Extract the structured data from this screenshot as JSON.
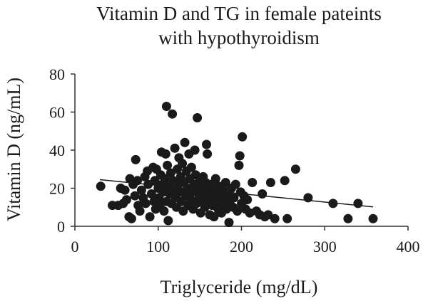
{
  "chart_data": {
    "type": "scatter",
    "title_lines": [
      "Vitamin D and TG in female pateints",
      "with hypothyroidism"
    ],
    "xlabel": "Triglyceride (mg/dL)",
    "ylabel": "Vitamin D (ng/mL)",
    "xlim": [
      0,
      400
    ],
    "ylim": [
      0,
      80
    ],
    "xticks": [
      0,
      100,
      200,
      300,
      400
    ],
    "yticks": [
      0,
      20,
      40,
      60,
      80
    ],
    "grid": false,
    "legend": "none",
    "point_color": "#1a1a1a",
    "trendline": {
      "x": [
        30,
        358
      ],
      "y": [
        24.5,
        10.2
      ]
    },
    "points": [
      {
        "x": 31,
        "y": 21
      },
      {
        "x": 45,
        "y": 11
      },
      {
        "x": 52,
        "y": 11
      },
      {
        "x": 55,
        "y": 20
      },
      {
        "x": 58,
        "y": 12
      },
      {
        "x": 60,
        "y": 19
      },
      {
        "x": 62,
        "y": 14
      },
      {
        "x": 65,
        "y": 5
      },
      {
        "x": 66,
        "y": 25
      },
      {
        "x": 68,
        "y": 4
      },
      {
        "x": 70,
        "y": 22
      },
      {
        "x": 72,
        "y": 16
      },
      {
        "x": 73,
        "y": 35
      },
      {
        "x": 75,
        "y": 24
      },
      {
        "x": 76,
        "y": 11
      },
      {
        "x": 78,
        "y": 8
      },
      {
        "x": 80,
        "y": 19
      },
      {
        "x": 82,
        "y": 15
      },
      {
        "x": 84,
        "y": 26
      },
      {
        "x": 85,
        "y": 12
      },
      {
        "x": 87,
        "y": 29
      },
      {
        "x": 88,
        "y": 22
      },
      {
        "x": 90,
        "y": 5
      },
      {
        "x": 92,
        "y": 17
      },
      {
        "x": 94,
        "y": 31
      },
      {
        "x": 95,
        "y": 13
      },
      {
        "x": 96,
        "y": 24
      },
      {
        "x": 97,
        "y": 9
      },
      {
        "x": 98,
        "y": 30
      },
      {
        "x": 100,
        "y": 20
      },
      {
        "x": 101,
        "y": 15
      },
      {
        "x": 102,
        "y": 11
      },
      {
        "x": 103,
        "y": 27
      },
      {
        "x": 104,
        "y": 39
      },
      {
        "x": 105,
        "y": 22
      },
      {
        "x": 106,
        "y": 18
      },
      {
        "x": 107,
        "y": 8
      },
      {
        "x": 108,
        "y": 25
      },
      {
        "x": 109,
        "y": 38
      },
      {
        "x": 110,
        "y": 63
      },
      {
        "x": 110,
        "y": 13
      },
      {
        "x": 111,
        "y": 32
      },
      {
        "x": 112,
        "y": 3
      },
      {
        "x": 113,
        "y": 21
      },
      {
        "x": 114,
        "y": 17
      },
      {
        "x": 115,
        "y": 28
      },
      {
        "x": 116,
        "y": 12
      },
      {
        "x": 117,
        "y": 59
      },
      {
        "x": 118,
        "y": 24
      },
      {
        "x": 119,
        "y": 19
      },
      {
        "x": 120,
        "y": 41
      },
      {
        "x": 121,
        "y": 15
      },
      {
        "x": 122,
        "y": 10
      },
      {
        "x": 123,
        "y": 30
      },
      {
        "x": 124,
        "y": 22
      },
      {
        "x": 125,
        "y": 36
      },
      {
        "x": 126,
        "y": 18
      },
      {
        "x": 127,
        "y": 26
      },
      {
        "x": 128,
        "y": 13
      },
      {
        "x": 129,
        "y": 33
      },
      {
        "x": 130,
        "y": 8
      },
      {
        "x": 131,
        "y": 23
      },
      {
        "x": 132,
        "y": 44
      },
      {
        "x": 133,
        "y": 16
      },
      {
        "x": 134,
        "y": 29
      },
      {
        "x": 135,
        "y": 20
      },
      {
        "x": 136,
        "y": 11
      },
      {
        "x": 137,
        "y": 38
      },
      {
        "x": 138,
        "y": 25
      },
      {
        "x": 139,
        "y": 14
      },
      {
        "x": 140,
        "y": 31
      },
      {
        "x": 141,
        "y": 18
      },
      {
        "x": 142,
        "y": 9
      },
      {
        "x": 143,
        "y": 22
      },
      {
        "x": 144,
        "y": 40
      },
      {
        "x": 145,
        "y": 27
      },
      {
        "x": 146,
        "y": 12
      },
      {
        "x": 147,
        "y": 57
      },
      {
        "x": 148,
        "y": 19
      },
      {
        "x": 149,
        "y": 15
      },
      {
        "x": 150,
        "y": 24
      },
      {
        "x": 151,
        "y": 7
      },
      {
        "x": 152,
        "y": 21
      },
      {
        "x": 153,
        "y": 13
      },
      {
        "x": 154,
        "y": 26
      },
      {
        "x": 155,
        "y": 17
      },
      {
        "x": 156,
        "y": 10
      },
      {
        "x": 157,
        "y": 23
      },
      {
        "x": 158,
        "y": 43
      },
      {
        "x": 159,
        "y": 38
      },
      {
        "x": 160,
        "y": 19
      },
      {
        "x": 161,
        "y": 14
      },
      {
        "x": 162,
        "y": 6
      },
      {
        "x": 163,
        "y": 22
      },
      {
        "x": 164,
        "y": 16
      },
      {
        "x": 165,
        "y": 11
      },
      {
        "x": 166,
        "y": 20
      },
      {
        "x": 167,
        "y": 5
      },
      {
        "x": 168,
        "y": 15
      },
      {
        "x": 169,
        "y": 25
      },
      {
        "x": 170,
        "y": 12
      },
      {
        "x": 171,
        "y": 18
      },
      {
        "x": 172,
        "y": 9
      },
      {
        "x": 173,
        "y": 21
      },
      {
        "x": 174,
        "y": 14
      },
      {
        "x": 175,
        "y": 16
      },
      {
        "x": 176,
        "y": 7
      },
      {
        "x": 178,
        "y": 19
      },
      {
        "x": 180,
        "y": 12
      },
      {
        "x": 181,
        "y": 23
      },
      {
        "x": 182,
        "y": 9
      },
      {
        "x": 184,
        "y": 16
      },
      {
        "x": 185,
        "y": 2
      },
      {
        "x": 186,
        "y": 13
      },
      {
        "x": 188,
        "y": 20
      },
      {
        "x": 190,
        "y": 10
      },
      {
        "x": 191,
        "y": 15
      },
      {
        "x": 193,
        "y": 22
      },
      {
        "x": 195,
        "y": 8
      },
      {
        "x": 197,
        "y": 32
      },
      {
        "x": 198,
        "y": 37
      },
      {
        "x": 199,
        "y": 18
      },
      {
        "x": 200,
        "y": 12
      },
      {
        "x": 201,
        "y": 47
      },
      {
        "x": 203,
        "y": 16
      },
      {
        "x": 205,
        "y": 9
      },
      {
        "x": 207,
        "y": 14
      },
      {
        "x": 210,
        "y": 7
      },
      {
        "x": 213,
        "y": 23
      },
      {
        "x": 218,
        "y": 8
      },
      {
        "x": 222,
        "y": 6
      },
      {
        "x": 225,
        "y": 17
      },
      {
        "x": 228,
        "y": 5
      },
      {
        "x": 232,
        "y": 6
      },
      {
        "x": 235,
        "y": 23
      },
      {
        "x": 240,
        "y": 4
      },
      {
        "x": 252,
        "y": 24
      },
      {
        "x": 255,
        "y": 4
      },
      {
        "x": 265,
        "y": 30
      },
      {
        "x": 280,
        "y": 15
      },
      {
        "x": 310,
        "y": 12
      },
      {
        "x": 328,
        "y": 4
      },
      {
        "x": 340,
        "y": 12
      },
      {
        "x": 358,
        "y": 4
      }
    ]
  }
}
